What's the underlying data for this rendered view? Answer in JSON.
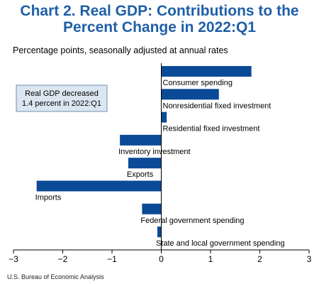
{
  "header": {
    "title_line1": "Chart 2. Real GDP: Contributions to the",
    "title_line2": "Percent Change in 2022:Q1",
    "subtitle": "Percentage points, seasonally adjusted at annual rates"
  },
  "footer": {
    "source": "U.S. Bureau of Economic Analysis"
  },
  "chart_data": {
    "type": "bar",
    "orientation": "horizontal",
    "categories": [
      "Consumer spending",
      "Nonresidential fixed investment",
      "Residential fixed investment",
      "Inventory investment",
      "Exports",
      "Imports",
      "Federal government spending",
      "State and local government spending"
    ],
    "values": [
      1.83,
      1.17,
      0.11,
      -0.84,
      -0.67,
      -2.53,
      -0.39,
      -0.08
    ],
    "xlim": [
      -3,
      3
    ],
    "xticks": [
      -3,
      -2,
      -1,
      0,
      1,
      2,
      3
    ],
    "xlabel": "",
    "ylabel": "",
    "grid": false,
    "bar_color": "#0b4a96",
    "annotation": {
      "line1": "Real GDP decreased",
      "line2": "1.4 percent in 2022:Q1"
    }
  },
  "colors": {
    "title": "#1f5fa6",
    "bar": "#0b4a96",
    "annotation_fill": "#dce6f1",
    "annotation_border": "#6f8fb5"
  }
}
